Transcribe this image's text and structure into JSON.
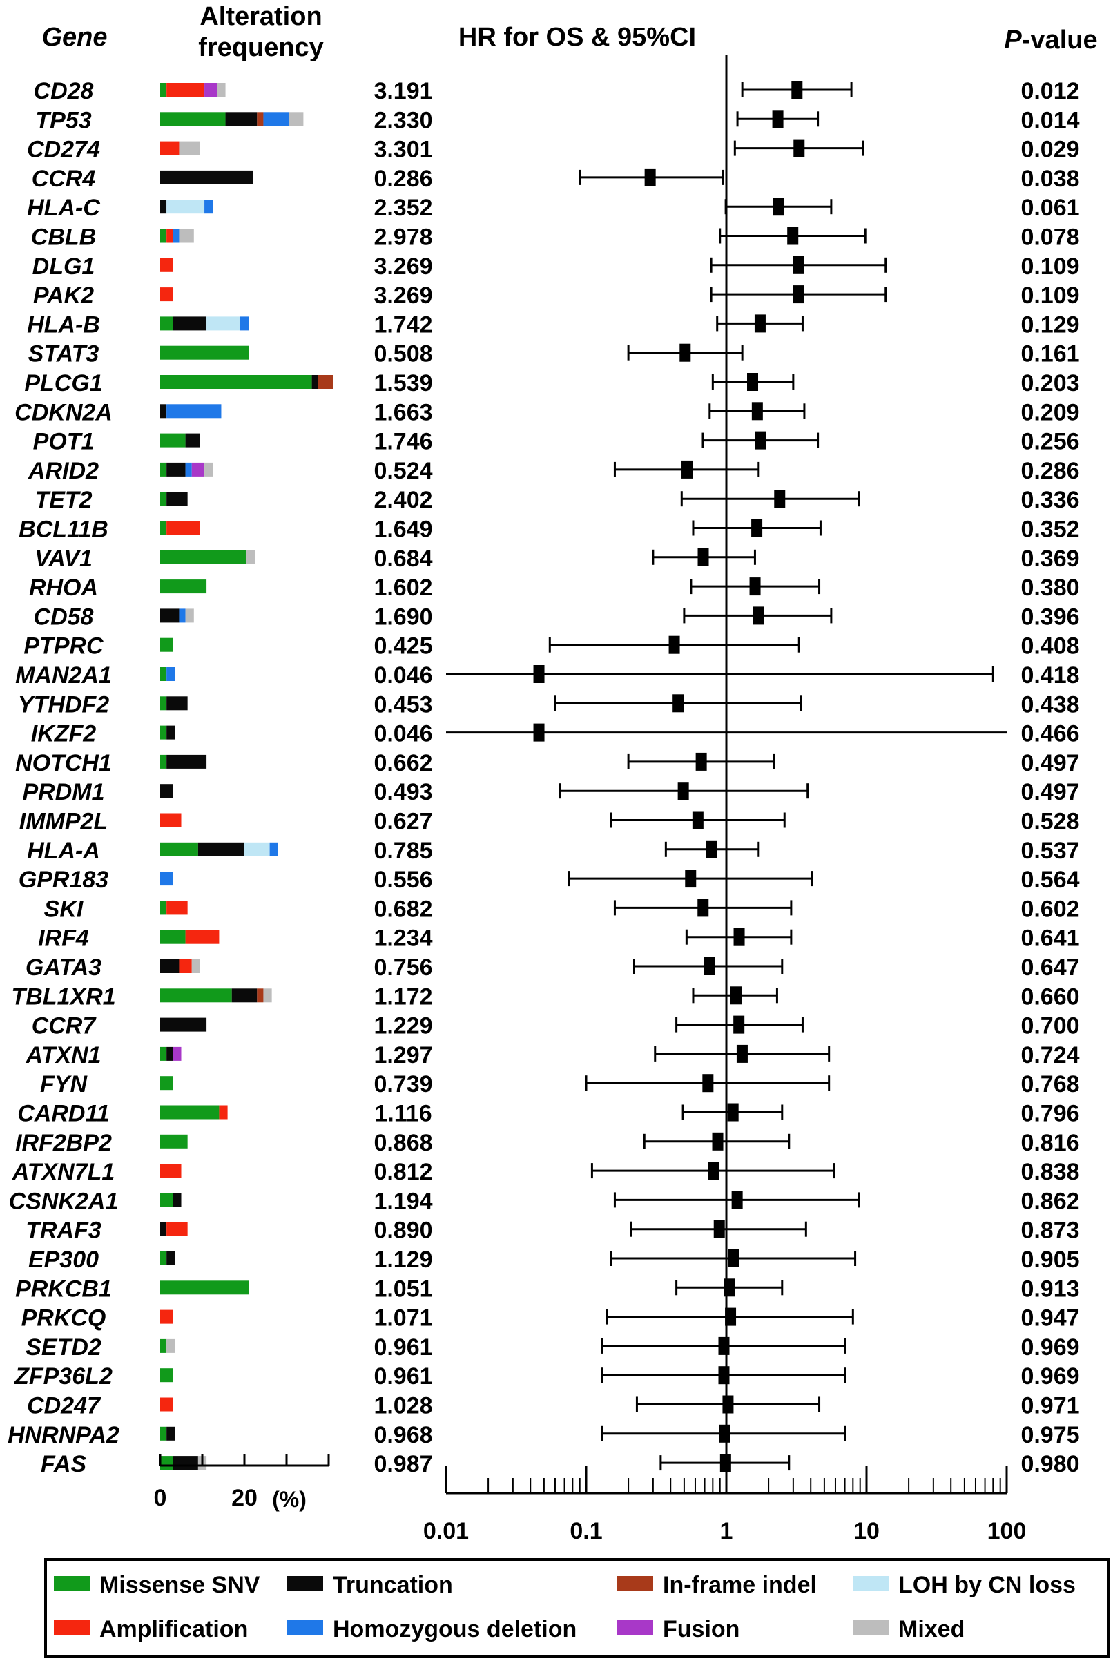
{
  "chart_data": {
    "type": "forest",
    "headers": {
      "gene": "Gene",
      "freq_line1": "Alteration",
      "freq_line2": "frequency",
      "hr": "HR for OS & 95%CI",
      "p_italic": "P",
      "p_rest": "-value"
    },
    "freq_axis": {
      "ticks": [
        "0",
        "20"
      ],
      "unit": "(%)",
      "range": [
        0,
        40
      ]
    },
    "hr_axis": {
      "scale": "log",
      "range": [
        0.01,
        100
      ],
      "reference": 1,
      "ticks": [
        "0.01",
        "0.1",
        "1",
        "10",
        "100"
      ]
    },
    "categories": [
      "Missense SNV",
      "Truncation",
      "In-frame indel",
      "LOH by CN loss",
      "Amplification",
      "Homozygous deletion",
      "Fusion",
      "Mixed"
    ],
    "category_colors": {
      "Missense SNV": "#119a1b",
      "Truncation": "#0a0a0a",
      "In-frame indel": "#a83a1a",
      "LOH by CN loss": "#bfe6f5",
      "Amplification": "#f5260f",
      "Homozygous deletion": "#1f78e8",
      "Fusion": "#a838c8",
      "Mixed": "#bdbdbd"
    },
    "rows": [
      {
        "gene": "CD28",
        "hr": "3.191",
        "p": "0.012",
        "lo": 1.3,
        "hi": 7.8,
        "segs": [
          [
            "Missense SNV",
            1.5
          ],
          [
            "Amplification",
            9
          ],
          [
            "Fusion",
            3
          ],
          [
            "Mixed",
            2
          ]
        ]
      },
      {
        "gene": "TP53",
        "hr": "2.330",
        "p": "0.014",
        "lo": 1.2,
        "hi": 4.5,
        "segs": [
          [
            "Missense SNV",
            15.5
          ],
          [
            "Truncation",
            7.5
          ],
          [
            "In-frame indel",
            1.5
          ],
          [
            "Homozygous deletion",
            6
          ],
          [
            "Mixed",
            3.5
          ]
        ]
      },
      {
        "gene": "CD274",
        "hr": "3.301",
        "p": "0.029",
        "lo": 1.15,
        "hi": 9.5,
        "segs": [
          [
            "Amplification",
            4.5
          ],
          [
            "Mixed",
            5
          ]
        ]
      },
      {
        "gene": "CCR4",
        "hr": "0.286",
        "p": "0.038",
        "lo": 0.09,
        "hi": 0.95,
        "segs": [
          [
            "Truncation",
            22
          ]
        ]
      },
      {
        "gene": "HLA-C",
        "hr": "2.352",
        "p": "0.061",
        "lo": 0.99,
        "hi": 5.6,
        "segs": [
          [
            "Truncation",
            1.5
          ],
          [
            "LOH by CN loss",
            9
          ],
          [
            "Homozygous deletion",
            2
          ]
        ]
      },
      {
        "gene": "CBLB",
        "hr": "2.978",
        "p": "0.078",
        "lo": 0.9,
        "hi": 9.8,
        "segs": [
          [
            "Missense SNV",
            1.5
          ],
          [
            "Amplification",
            1.5
          ],
          [
            "Homozygous deletion",
            1.5
          ],
          [
            "Mixed",
            3.5
          ]
        ]
      },
      {
        "gene": "DLG1",
        "hr": "3.269",
        "p": "0.109",
        "lo": 0.78,
        "hi": 13.7,
        "segs": [
          [
            "Amplification",
            3
          ]
        ]
      },
      {
        "gene": "PAK2",
        "hr": "3.269",
        "p": "0.109",
        "lo": 0.78,
        "hi": 13.7,
        "segs": [
          [
            "Amplification",
            3
          ]
        ]
      },
      {
        "gene": "HLA-B",
        "hr": "1.742",
        "p": "0.129",
        "lo": 0.86,
        "hi": 3.5,
        "segs": [
          [
            "Missense SNV",
            3
          ],
          [
            "Truncation",
            8
          ],
          [
            "LOH by CN loss",
            8
          ],
          [
            "Homozygous deletion",
            2
          ]
        ]
      },
      {
        "gene": "STAT3",
        "hr": "0.508",
        "p": "0.161",
        "lo": 0.2,
        "hi": 1.3,
        "segs": [
          [
            "Missense SNV",
            21
          ]
        ]
      },
      {
        "gene": "PLCG1",
        "hr": "1.539",
        "p": "0.203",
        "lo": 0.8,
        "hi": 3.0,
        "segs": [
          [
            "Missense SNV",
            36
          ],
          [
            "Truncation",
            1.5
          ],
          [
            "In-frame indel",
            3.5
          ]
        ]
      },
      {
        "gene": "CDKN2A",
        "hr": "1.663",
        "p": "0.209",
        "lo": 0.76,
        "hi": 3.6,
        "segs": [
          [
            "Truncation",
            1.5
          ],
          [
            "Homozygous deletion",
            13
          ]
        ]
      },
      {
        "gene": "POT1",
        "hr": "1.746",
        "p": "0.256",
        "lo": 0.68,
        "hi": 4.5,
        "segs": [
          [
            "Missense SNV",
            6
          ],
          [
            "Truncation",
            3.5
          ]
        ]
      },
      {
        "gene": "ARID2",
        "hr": "0.524",
        "p": "0.286",
        "lo": 0.16,
        "hi": 1.7,
        "segs": [
          [
            "Missense SNV",
            1.5
          ],
          [
            "Truncation",
            4.5
          ],
          [
            "Homozygous deletion",
            1.5
          ],
          [
            "Fusion",
            3
          ],
          [
            "Mixed",
            2
          ]
        ]
      },
      {
        "gene": "TET2",
        "hr": "2.402",
        "p": "0.336",
        "lo": 0.48,
        "hi": 8.8,
        "segs": [
          [
            "Missense SNV",
            1.5
          ],
          [
            "Truncation",
            5
          ]
        ]
      },
      {
        "gene": "BCL11B",
        "hr": "1.649",
        "p": "0.352",
        "lo": 0.58,
        "hi": 4.7,
        "segs": [
          [
            "Missense SNV",
            1.5
          ],
          [
            "Amplification",
            8
          ]
        ]
      },
      {
        "gene": "VAV1",
        "hr": "0.684",
        "p": "0.369",
        "lo": 0.3,
        "hi": 1.6,
        "segs": [
          [
            "Missense SNV",
            20.5
          ],
          [
            "Mixed",
            2
          ]
        ]
      },
      {
        "gene": "RHOA",
        "hr": "1.602",
        "p": "0.380",
        "lo": 0.56,
        "hi": 4.6,
        "segs": [
          [
            "Missense SNV",
            11
          ]
        ]
      },
      {
        "gene": "CD58",
        "hr": "1.690",
        "p": "0.396",
        "lo": 0.5,
        "hi": 5.6,
        "segs": [
          [
            "Truncation",
            4.5
          ],
          [
            "Homozygous deletion",
            1.5
          ],
          [
            "Mixed",
            2
          ]
        ]
      },
      {
        "gene": "PTPRC",
        "hr": "0.425",
        "p": "0.408",
        "lo": 0.055,
        "hi": 3.3,
        "segs": [
          [
            "Missense SNV",
            3
          ]
        ]
      },
      {
        "gene": "MAN2A1",
        "hr": "0.046",
        "p": "0.418",
        "lo": 0.01,
        "hi": 80,
        "segs": [
          [
            "Missense SNV",
            1.5
          ],
          [
            "Homozygous deletion",
            2
          ]
        ]
      },
      {
        "gene": "YTHDF2",
        "hr": "0.453",
        "p": "0.438",
        "lo": 0.06,
        "hi": 3.4,
        "segs": [
          [
            "Missense SNV",
            1.5
          ],
          [
            "Truncation",
            5
          ]
        ]
      },
      {
        "gene": "IKZF2",
        "hr": "0.046",
        "p": "0.466",
        "lo": 0.01,
        "hi": 100,
        "segs": [
          [
            "Missense SNV",
            1.5
          ],
          [
            "Truncation",
            2
          ]
        ]
      },
      {
        "gene": "NOTCH1",
        "hr": "0.662",
        "p": "0.497",
        "lo": 0.2,
        "hi": 2.2,
        "segs": [
          [
            "Missense SNV",
            1.5
          ],
          [
            "Truncation",
            9.5
          ]
        ]
      },
      {
        "gene": "PRDM1",
        "hr": "0.493",
        "p": "0.497",
        "lo": 0.065,
        "hi": 3.8,
        "segs": [
          [
            "Truncation",
            3
          ]
        ]
      },
      {
        "gene": "IMMP2L",
        "hr": "0.627",
        "p": "0.528",
        "lo": 0.15,
        "hi": 2.6,
        "segs": [
          [
            "Amplification",
            5
          ]
        ]
      },
      {
        "gene": "HLA-A",
        "hr": "0.785",
        "p": "0.537",
        "lo": 0.37,
        "hi": 1.7,
        "segs": [
          [
            "Missense SNV",
            9
          ],
          [
            "Truncation",
            11
          ],
          [
            "LOH by CN loss",
            6
          ],
          [
            "Homozygous deletion",
            2
          ]
        ]
      },
      {
        "gene": "GPR183",
        "hr": "0.556",
        "p": "0.564",
        "lo": 0.075,
        "hi": 4.1,
        "segs": [
          [
            "Homozygous deletion",
            3
          ]
        ]
      },
      {
        "gene": "SKI",
        "hr": "0.682",
        "p": "0.602",
        "lo": 0.16,
        "hi": 2.9,
        "segs": [
          [
            "Missense SNV",
            1.5
          ],
          [
            "Amplification",
            5
          ]
        ]
      },
      {
        "gene": "IRF4",
        "hr": "1.234",
        "p": "0.641",
        "lo": 0.52,
        "hi": 2.9,
        "segs": [
          [
            "Missense SNV",
            6
          ],
          [
            "Amplification",
            8
          ]
        ]
      },
      {
        "gene": "GATA3",
        "hr": "0.756",
        "p": "0.647",
        "lo": 0.22,
        "hi": 2.5,
        "segs": [
          [
            "Truncation",
            4.5
          ],
          [
            "Amplification",
            3
          ],
          [
            "Mixed",
            2
          ]
        ]
      },
      {
        "gene": "TBL1XR1",
        "hr": "1.172",
        "p": "0.660",
        "lo": 0.58,
        "hi": 2.3,
        "segs": [
          [
            "Missense SNV",
            17
          ],
          [
            "Truncation",
            6
          ],
          [
            "In-frame indel",
            1.5
          ],
          [
            "Mixed",
            2
          ]
        ]
      },
      {
        "gene": "CCR7",
        "hr": "1.229",
        "p": "0.700",
        "lo": 0.44,
        "hi": 3.5,
        "segs": [
          [
            "Truncation",
            11
          ]
        ]
      },
      {
        "gene": "ATXN1",
        "hr": "1.297",
        "p": "0.724",
        "lo": 0.31,
        "hi": 5.4,
        "segs": [
          [
            "Missense SNV",
            1.5
          ],
          [
            "Truncation",
            1.5
          ],
          [
            "Fusion",
            2
          ]
        ]
      },
      {
        "gene": "FYN",
        "hr": "0.739",
        "p": "0.768",
        "lo": 0.1,
        "hi": 5.4,
        "segs": [
          [
            "Missense SNV",
            3
          ]
        ]
      },
      {
        "gene": "CARD11",
        "hr": "1.116",
        "p": "0.796",
        "lo": 0.49,
        "hi": 2.5,
        "segs": [
          [
            "Missense SNV",
            14
          ],
          [
            "Amplification",
            2
          ]
        ]
      },
      {
        "gene": "IRF2BP2",
        "hr": "0.868",
        "p": "0.816",
        "lo": 0.26,
        "hi": 2.8,
        "segs": [
          [
            "Missense SNV",
            6.5
          ]
        ]
      },
      {
        "gene": "ATXN7L1",
        "hr": "0.812",
        "p": "0.838",
        "lo": 0.11,
        "hi": 5.9,
        "segs": [
          [
            "Amplification",
            5
          ]
        ]
      },
      {
        "gene": "CSNK2A1",
        "hr": "1.194",
        "p": "0.862",
        "lo": 0.16,
        "hi": 8.8,
        "segs": [
          [
            "Missense SNV",
            3
          ],
          [
            "Truncation",
            2
          ]
        ]
      },
      {
        "gene": "TRAF3",
        "hr": "0.890",
        "p": "0.873",
        "lo": 0.21,
        "hi": 3.7,
        "segs": [
          [
            "Truncation",
            1.5
          ],
          [
            "Amplification",
            5
          ]
        ]
      },
      {
        "gene": "EP300",
        "hr": "1.129",
        "p": "0.905",
        "lo": 0.15,
        "hi": 8.3,
        "segs": [
          [
            "Missense SNV",
            1.5
          ],
          [
            "Truncation",
            2
          ]
        ]
      },
      {
        "gene": "PRKCB1",
        "hr": "1.051",
        "p": "0.913",
        "lo": 0.44,
        "hi": 2.5,
        "segs": [
          [
            "Missense SNV",
            21
          ]
        ]
      },
      {
        "gene": "PRKCQ",
        "hr": "1.071",
        "p": "0.947",
        "lo": 0.14,
        "hi": 8.0,
        "segs": [
          [
            "Amplification",
            3
          ]
        ]
      },
      {
        "gene": "SETD2",
        "hr": "0.961",
        "p": "0.969",
        "lo": 0.13,
        "hi": 7.0,
        "segs": [
          [
            "Missense SNV",
            1.5
          ],
          [
            "Mixed",
            2
          ]
        ]
      },
      {
        "gene": "ZFP36L2",
        "hr": "0.961",
        "p": "0.969",
        "lo": 0.13,
        "hi": 7.0,
        "segs": [
          [
            "Missense SNV",
            3
          ]
        ]
      },
      {
        "gene": "CD247",
        "hr": "1.028",
        "p": "0.971",
        "lo": 0.23,
        "hi": 4.6,
        "segs": [
          [
            "Amplification",
            3
          ]
        ]
      },
      {
        "gene": "HNRNPA2",
        "hr": "0.968",
        "p": "0.975",
        "lo": 0.13,
        "hi": 7.0,
        "segs": [
          [
            "Missense SNV",
            1.5
          ],
          [
            "Truncation",
            2
          ]
        ]
      },
      {
        "gene": "FAS",
        "hr": "0.987",
        "p": "0.980",
        "lo": 0.34,
        "hi": 2.8,
        "segs": [
          [
            "Missense SNV",
            3
          ],
          [
            "Truncation",
            6
          ],
          [
            "Mixed",
            2
          ]
        ]
      }
    ]
  }
}
